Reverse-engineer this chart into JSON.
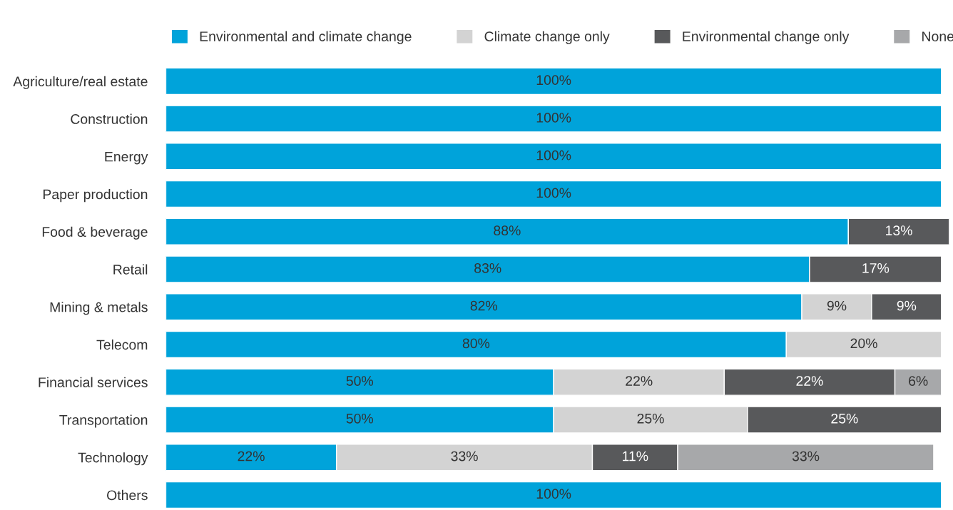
{
  "chart_data": {
    "type": "bar",
    "orientation": "horizontal",
    "stacked": true,
    "legend": "top",
    "grid": false,
    "tick_labels": "y",
    "categories": [
      "Agriculture/real estate",
      "Construction",
      "Energy",
      "Paper production",
      "Food & beverage",
      "Retail",
      "Mining & metals",
      "Telecom",
      "Financial services",
      "Transportation",
      "Technology",
      "Others"
    ],
    "series": [
      {
        "name": "Environmental and climate change",
        "color": "#00a3da",
        "values": [
          100,
          100,
          100,
          100,
          88,
          83,
          82,
          80,
          50,
          50,
          22,
          100
        ],
        "value_labels": [
          "100%",
          "100%",
          "100%",
          "100%",
          "88%",
          "83%",
          "82%",
          "80%",
          "50%",
          "50%",
          "22%",
          "100%"
        ]
      },
      {
        "name": "Climate change only",
        "color": "#d3d3d3",
        "values": [
          null,
          null,
          null,
          null,
          null,
          null,
          9,
          20,
          22,
          25,
          33,
          null
        ],
        "value_labels": [
          null,
          null,
          null,
          null,
          null,
          null,
          "9%",
          "20%",
          "22%",
          "25%",
          "33%",
          null
        ]
      },
      {
        "name": "Environmental change only",
        "color": "#58595b",
        "values": [
          null,
          null,
          null,
          null,
          13,
          17,
          9,
          null,
          22,
          25,
          11,
          null
        ],
        "value_labels": [
          null,
          null,
          null,
          null,
          "13%",
          "17%",
          "9%",
          null,
          "22%",
          "25%",
          "11%",
          null
        ]
      },
      {
        "name": "None",
        "color": "#a7a8aa",
        "values": [
          null,
          null,
          null,
          null,
          null,
          null,
          null,
          null,
          6,
          null,
          33,
          null
        ],
        "value_labels": [
          null,
          null,
          null,
          null,
          null,
          null,
          null,
          null,
          "6%",
          null,
          "33%",
          null
        ]
      }
    ]
  }
}
